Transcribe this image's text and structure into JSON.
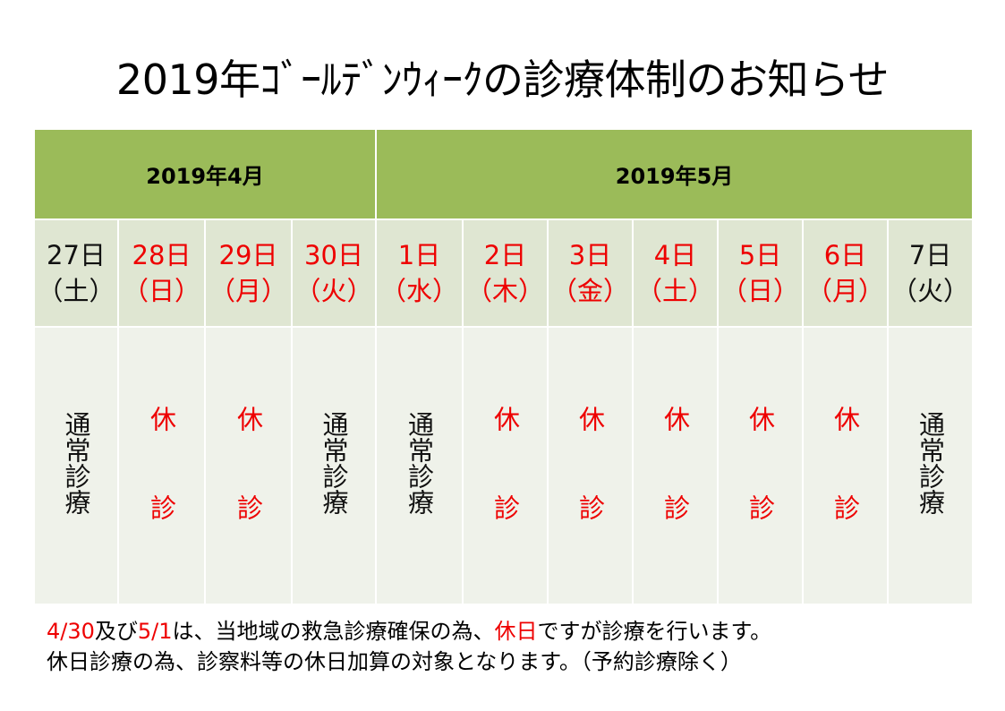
{
  "title": "2019年ｺﾞｰﾙﾃﾞﾝｳｨｰｸの診療体制のお知らせ",
  "months": [
    {
      "label": "2019年4月",
      "span": 4
    },
    {
      "label": "2019年5月",
      "span": 7
    }
  ],
  "days": [
    {
      "date": "27日",
      "weekday": "（土）",
      "status": "通常診療",
      "holiday": false
    },
    {
      "date": "28日",
      "weekday": "（日）",
      "status": "休診",
      "holiday": true
    },
    {
      "date": "29日",
      "weekday": "（月）",
      "status": "休診",
      "holiday": true
    },
    {
      "date": "30日",
      "weekday": "（火）",
      "status": "通常診療",
      "holiday": true
    },
    {
      "date": "1日",
      "weekday": "（水）",
      "status": "通常診療",
      "holiday": true
    },
    {
      "date": "2日",
      "weekday": "（木）",
      "status": "休診",
      "holiday": true
    },
    {
      "date": "3日",
      "weekday": "（金）",
      "status": "休診",
      "holiday": true
    },
    {
      "date": "4日",
      "weekday": "（土）",
      "status": "休診",
      "holiday": true
    },
    {
      "date": "5日",
      "weekday": "（日）",
      "status": "休診",
      "holiday": true
    },
    {
      "date": "6日",
      "weekday": "（月）",
      "status": "休診",
      "holiday": true
    },
    {
      "date": "7日",
      "weekday": "（火）",
      "status": "通常診療",
      "holiday": false
    }
  ],
  "notes": {
    "line1": {
      "date1": "4/30",
      "and": "及び",
      "date2": "5/1",
      "mid": "は、当地域の救急診療確保の為、",
      "holiday": "休日",
      "end": "ですが診療を行います。"
    },
    "line2": "休日診療の為、診察料等の休日加算の対象となります。（予約診療除く）"
  },
  "colors": {
    "month_header_bg": "#9bbb59",
    "day_header_bg": "#dfe6d2",
    "status_bg": "#eff2ea",
    "holiday_text": "#ee0000"
  }
}
